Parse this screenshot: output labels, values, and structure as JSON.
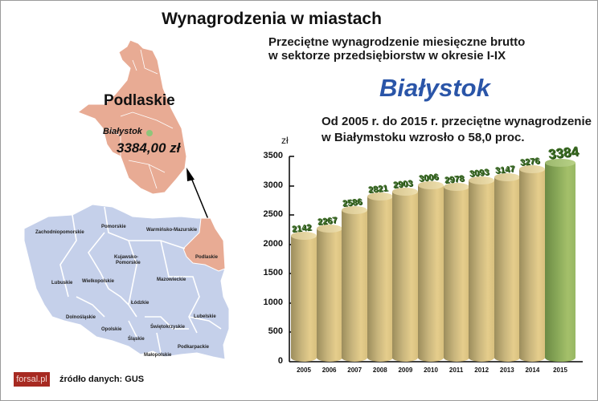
{
  "header": {
    "title": "Wynagrodzenia w miastach",
    "subtitle_line1": "Przeciętne wynagrodzenie miesięczne brutto",
    "subtitle_line2": "w sektorze przedsiębiorstw w okresie I-IX",
    "city": "Białystok",
    "growth_line1": "Od 2005 r. do 2015 r. przeciętne wynagrodzenie",
    "growth_line2": "w Białymstoku wzrosło o 58,0 proc."
  },
  "inset": {
    "region": "Podlaskie",
    "city": "Białystok",
    "value": "3384,00 zł"
  },
  "map": {
    "regions": [
      "Zachodniopomorskie",
      "Pomorskie",
      "Warmińsko-Mazurskie",
      "Kujawsko-",
      "Pomorskie",
      "Podlaskie",
      "Lubuskie",
      "Wielkopolskie",
      "Mazowieckie",
      "Łódzkie",
      "Dolnośląskie",
      "Lubelskie",
      "Opolskie",
      "Świętokrzyskie",
      "Śląskie",
      "Podkarpackie",
      "Małopolskie"
    ],
    "colors": {
      "highlight": "#e8ab94",
      "base": "#c5d0ea"
    }
  },
  "footer": {
    "logo": "forsal.pl",
    "source": "źródło danych: GUS"
  },
  "colors": {
    "city_blue": "#2a55a8",
    "bar_tan": "#d8c07e",
    "bar_green": "#98b864",
    "label_green": "#3a6a22",
    "logo_red": "#a72a22"
  },
  "chart_data": {
    "type": "bar",
    "title": "Przeciętne wynagrodzenie miesięczne brutto w sektorze przedsiębiorstw w okresie I-IX – Białystok",
    "categories": [
      "2005",
      "2006",
      "2007",
      "2008",
      "2009",
      "2010",
      "2011",
      "2012",
      "2013",
      "2014",
      "2015"
    ],
    "values": [
      2142,
      2267,
      2586,
      2821,
      2903,
      3006,
      2978,
      3093,
      3147,
      3276,
      3384
    ],
    "labels": [
      "2142",
      "2267",
      "2586",
      "2821",
      "2903",
      "3006",
      "2978",
      "3093",
      "3147",
      "3276",
      "3384"
    ],
    "ylabel": "zł",
    "xlabel": "",
    "ylim": [
      0,
      3500
    ],
    "yticks": [
      "0",
      "500",
      "1000",
      "1500",
      "2000",
      "2500",
      "3000",
      "3500"
    ],
    "highlight": "2015",
    "grid": false,
    "legend": null
  }
}
